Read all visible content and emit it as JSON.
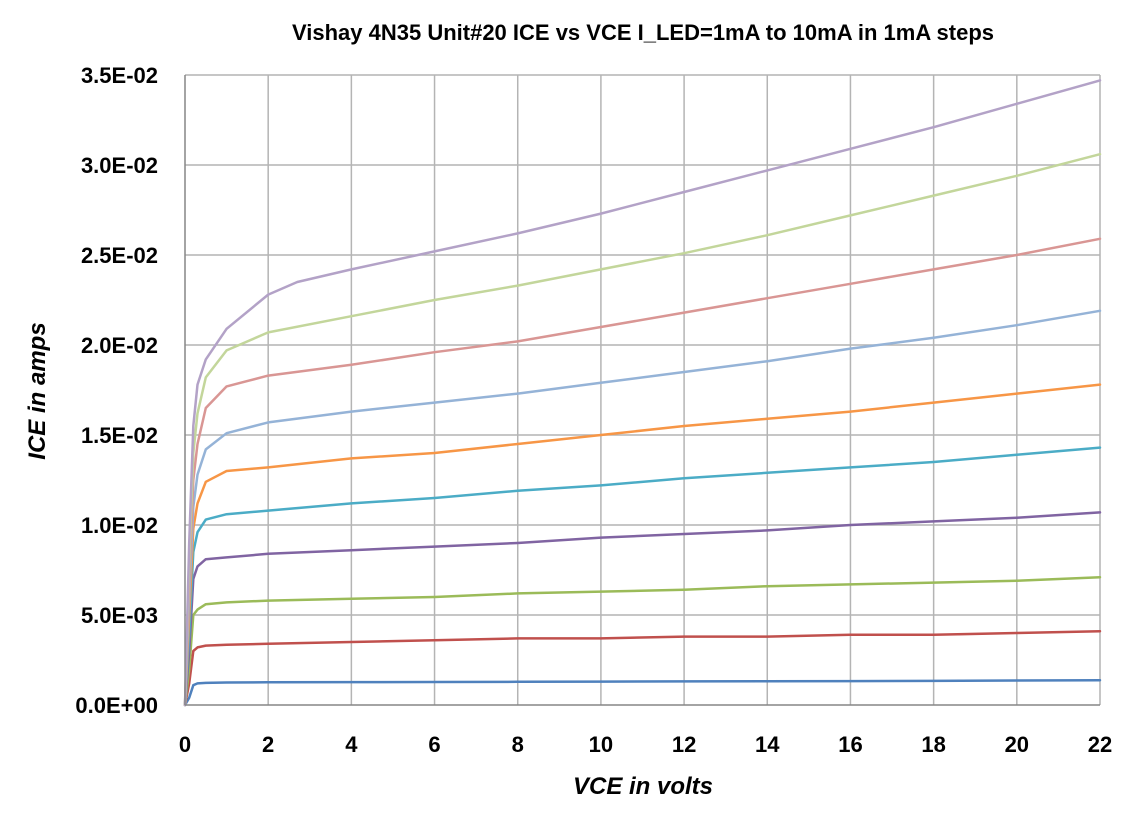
{
  "chart_data": {
    "type": "line",
    "title": "Vishay 4N35 Unit#20  ICE vs VCE   I_LED=1mA to 10mA in 1mA steps",
    "xlabel": "VCE in volts",
    "ylabel": "ICE in amps",
    "xlim": [
      0,
      22
    ],
    "ylim": [
      0,
      0.035
    ],
    "x_ticks": [
      0,
      2,
      4,
      6,
      8,
      10,
      12,
      14,
      16,
      18,
      20,
      22
    ],
    "y_ticks": [
      0,
      0.005,
      0.01,
      0.015,
      0.02,
      0.025,
      0.03,
      0.035
    ],
    "x_tick_labels": [
      "0",
      "2",
      "4",
      "6",
      "8",
      "10",
      "12",
      "14",
      "16",
      "18",
      "20",
      "22"
    ],
    "y_tick_labels": [
      "0.0E+00",
      "5.0E-03",
      "1.0E-02",
      "1.5E-02",
      "2.0E-02",
      "2.5E-02",
      "3.0E-02",
      "3.5E-02"
    ],
    "grid": true,
    "legend": "none",
    "series": [
      {
        "color": "#4f81bd",
        "x": [
          0,
          0.1,
          0.2,
          0.3,
          0.5,
          1,
          2,
          4,
          6,
          8,
          10,
          12,
          14,
          16,
          18,
          20,
          22
        ],
        "y": [
          0,
          0.0004,
          0.0011,
          0.0012,
          0.00123,
          0.00125,
          0.00126,
          0.00127,
          0.00128,
          0.00129,
          0.0013,
          0.00131,
          0.00132,
          0.00133,
          0.00134,
          0.00136,
          0.00138
        ]
      },
      {
        "color": "#c0504d",
        "x": [
          0,
          0.1,
          0.2,
          0.3,
          0.5,
          1,
          2,
          4,
          6,
          8,
          10,
          12,
          14,
          16,
          18,
          20,
          22
        ],
        "y": [
          0,
          0.0012,
          0.003,
          0.0032,
          0.0033,
          0.00335,
          0.0034,
          0.0035,
          0.0036,
          0.0037,
          0.0037,
          0.0038,
          0.0038,
          0.0039,
          0.0039,
          0.004,
          0.0041
        ]
      },
      {
        "color": "#9bbb59",
        "x": [
          0,
          0.1,
          0.2,
          0.3,
          0.5,
          1,
          2,
          4,
          6,
          8,
          10,
          12,
          14,
          16,
          18,
          20,
          22
        ],
        "y": [
          0,
          0.002,
          0.005,
          0.0053,
          0.0056,
          0.0057,
          0.0058,
          0.0059,
          0.006,
          0.0062,
          0.0063,
          0.0064,
          0.0066,
          0.0067,
          0.0068,
          0.0069,
          0.0071
        ]
      },
      {
        "color": "#8064a2",
        "x": [
          0,
          0.1,
          0.2,
          0.3,
          0.5,
          1,
          2,
          4,
          6,
          8,
          10,
          12,
          14,
          16,
          18,
          20,
          22
        ],
        "y": [
          0,
          0.003,
          0.007,
          0.0077,
          0.0081,
          0.0082,
          0.0084,
          0.0086,
          0.0088,
          0.009,
          0.0093,
          0.0095,
          0.0097,
          0.01,
          0.0102,
          0.0104,
          0.0107
        ]
      },
      {
        "color": "#4bacc6",
        "x": [
          0,
          0.1,
          0.2,
          0.3,
          0.5,
          1,
          2,
          4,
          6,
          8,
          10,
          12,
          14,
          16,
          18,
          20,
          22
        ],
        "y": [
          0,
          0.004,
          0.0085,
          0.0096,
          0.0103,
          0.0106,
          0.0108,
          0.0112,
          0.0115,
          0.0119,
          0.0122,
          0.0126,
          0.0129,
          0.0132,
          0.0135,
          0.0139,
          0.0143
        ]
      },
      {
        "color": "#f79646",
        "x": [
          0,
          0.1,
          0.2,
          0.3,
          0.5,
          1,
          2,
          4,
          6,
          8,
          10,
          12,
          14,
          16,
          18,
          20,
          22
        ],
        "y": [
          0,
          0.005,
          0.0098,
          0.0112,
          0.0124,
          0.013,
          0.0132,
          0.0137,
          0.014,
          0.0145,
          0.015,
          0.0155,
          0.0159,
          0.0163,
          0.0168,
          0.0173,
          0.0178
        ]
      },
      {
        "color": "#95b3d7",
        "x": [
          0,
          0.1,
          0.2,
          0.3,
          0.5,
          1,
          2,
          4,
          6,
          8,
          10,
          12,
          14,
          16,
          18,
          20,
          22
        ],
        "y": [
          0,
          0.006,
          0.011,
          0.0128,
          0.0142,
          0.0151,
          0.0157,
          0.0163,
          0.0168,
          0.0173,
          0.0179,
          0.0185,
          0.0191,
          0.0198,
          0.0204,
          0.0211,
          0.0219
        ]
      },
      {
        "color": "#d99694",
        "x": [
          0,
          0.1,
          0.2,
          0.3,
          0.5,
          1,
          2,
          4,
          6,
          8,
          10,
          12,
          14,
          16,
          18,
          20,
          22
        ],
        "y": [
          0,
          0.007,
          0.0125,
          0.0145,
          0.0165,
          0.0177,
          0.0183,
          0.0189,
          0.0196,
          0.0202,
          0.021,
          0.0218,
          0.0226,
          0.0234,
          0.0242,
          0.025,
          0.0259
        ]
      },
      {
        "color": "#c3d69b",
        "x": [
          0,
          0.1,
          0.2,
          0.3,
          0.5,
          1,
          2,
          4,
          6,
          8,
          10,
          12,
          14,
          16,
          18,
          20,
          22
        ],
        "y": [
          0,
          0.008,
          0.014,
          0.0162,
          0.0182,
          0.0197,
          0.0207,
          0.0216,
          0.0225,
          0.0233,
          0.0242,
          0.0251,
          0.0261,
          0.0272,
          0.0283,
          0.0294,
          0.0306
        ]
      },
      {
        "color": "#b3a2c7",
        "x": [
          0,
          0.1,
          0.2,
          0.3,
          0.5,
          1,
          2,
          2.7,
          4,
          6,
          8,
          10,
          12,
          14,
          16,
          18,
          20,
          22
        ],
        "y": [
          0,
          0.009,
          0.0155,
          0.0178,
          0.0192,
          0.0209,
          0.0228,
          0.0235,
          0.0242,
          0.0252,
          0.0262,
          0.0273,
          0.0285,
          0.0297,
          0.0309,
          0.0321,
          0.0334,
          0.0347
        ]
      }
    ]
  }
}
